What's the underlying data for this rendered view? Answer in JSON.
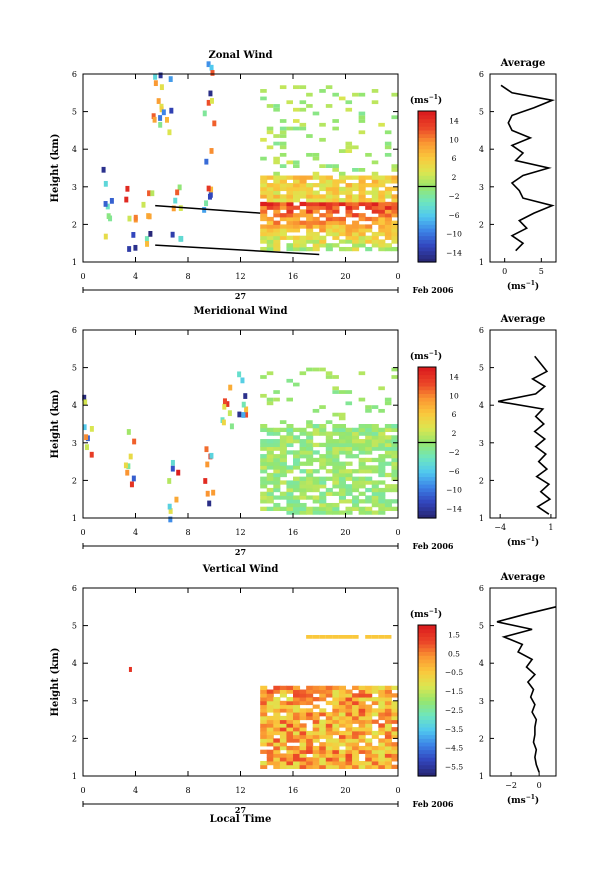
{
  "figure": {
    "date_label": "Feb 2006",
    "day_label": "27",
    "xlabel": "Local Time",
    "avg_xlabel_unit": "(ms",
    "avg_xlabel_sup": "−1",
    "cb_unit": "(ms",
    "cb_unit_sup": "−1",
    "cb_unit_close": ")"
  },
  "chart_data": [
    {
      "type": "heatmap",
      "title": "Zonal Wind",
      "xlabel": "",
      "ylabel": "Height (km)",
      "xlim": [
        0,
        24
      ],
      "ylim": [
        1,
        6
      ],
      "xticks": [
        "0",
        "4",
        "8",
        "12",
        "16",
        "20",
        "0"
      ],
      "yticks": [
        "1",
        "2",
        "3",
        "4",
        "5",
        "6"
      ],
      "colorbar": {
        "ticks": [
          "14",
          "10",
          "6",
          "2",
          "−2",
          "−6",
          "−10",
          "−14"
        ],
        "range": [
          -16,
          16
        ],
        "zero_line": true
      },
      "average_profile": {
        "title": "Average",
        "xticks": [
          "0",
          "5"
        ],
        "xlim": [
          -2,
          7
        ],
        "heights": [
          1.3,
          1.5,
          1.7,
          1.9,
          2.1,
          2.3,
          2.5,
          2.7,
          2.9,
          3.1,
          3.3,
          3.5,
          3.7,
          3.9,
          4.1,
          4.3,
          4.5,
          4.7,
          4.9,
          5.1,
          5.3,
          5.5,
          5.7
        ],
        "values": [
          1.5,
          2.5,
          1.0,
          3.0,
          2.0,
          4.0,
          6.5,
          2.5,
          2.0,
          1.0,
          2.5,
          6.0,
          1.5,
          2.5,
          1.0,
          3.5,
          1.0,
          0.5,
          1.0,
          4.0,
          6.5,
          1.0,
          -0.5
        ]
      }
    },
    {
      "type": "heatmap",
      "title": "Meridional Wind",
      "xlabel": "",
      "ylabel": "Height (km)",
      "xlim": [
        0,
        24
      ],
      "ylim": [
        1,
        6
      ],
      "xticks": [
        "0",
        "4",
        "8",
        "12",
        "16",
        "20",
        "0"
      ],
      "yticks": [
        "1",
        "2",
        "3",
        "4",
        "5",
        "6"
      ],
      "colorbar": {
        "ticks": [
          "14",
          "10",
          "6",
          "2",
          "−2",
          "−6",
          "−10",
          "−14"
        ],
        "range": [
          -16,
          16
        ],
        "zero_line": true
      },
      "average_profile": {
        "title": "Average",
        "xticks": [
          "−4",
          "1"
        ],
        "xlim": [
          -5,
          1.5
        ],
        "heights": [
          1.1,
          1.3,
          1.5,
          1.7,
          1.9,
          2.1,
          2.3,
          2.5,
          2.7,
          2.9,
          3.1,
          3.3,
          3.5,
          3.7,
          3.9,
          4.1,
          4.3,
          4.5,
          4.7,
          4.9,
          5.1,
          5.3
        ],
        "values": [
          0.8,
          -0.3,
          0.9,
          0.0,
          0.8,
          -0.4,
          0.6,
          -0.2,
          0.5,
          -0.5,
          0.4,
          -0.6,
          0.3,
          -0.5,
          0.2,
          -4.2,
          -0.5,
          0.4,
          -0.8,
          0.6,
          0.0,
          -0.6
        ]
      }
    },
    {
      "type": "heatmap",
      "title": "Vertical Wind",
      "xlabel": "Local Time",
      "ylabel": "Height (km)",
      "xlim": [
        0,
        24
      ],
      "ylim": [
        1,
        6
      ],
      "xticks": [
        "0",
        "4",
        "8",
        "12",
        "16",
        "20",
        "0"
      ],
      "yticks": [
        "1",
        "2",
        "3",
        "4",
        "5",
        "6"
      ],
      "colorbar": {
        "ticks": [
          "1.5",
          "0.5",
          "−0.5",
          "−1.5",
          "−2.5",
          "−3.5",
          "−4.5",
          "−5.5"
        ],
        "range": [
          -6,
          2
        ],
        "zero_line": false
      },
      "average_profile": {
        "title": "Average",
        "xticks": [
          "−2",
          "0"
        ],
        "xlim": [
          -3.5,
          1.2
        ],
        "heights": [
          1.1,
          1.3,
          1.5,
          1.7,
          1.9,
          2.1,
          2.3,
          2.5,
          2.7,
          2.9,
          3.1,
          3.3,
          3.5,
          3.7,
          3.9,
          4.1,
          4.3,
          4.5,
          4.7,
          4.9,
          5.1,
          5.3,
          5.5
        ],
        "values": [
          0.0,
          -0.2,
          -0.3,
          -0.2,
          -0.4,
          -0.3,
          -0.3,
          -0.2,
          -0.5,
          -0.3,
          -0.6,
          -0.4,
          -0.8,
          -0.3,
          -0.9,
          -0.5,
          -1.5,
          -1.2,
          -2.5,
          -0.5,
          -3.0,
          -1.0,
          1.2
        ]
      }
    }
  ]
}
